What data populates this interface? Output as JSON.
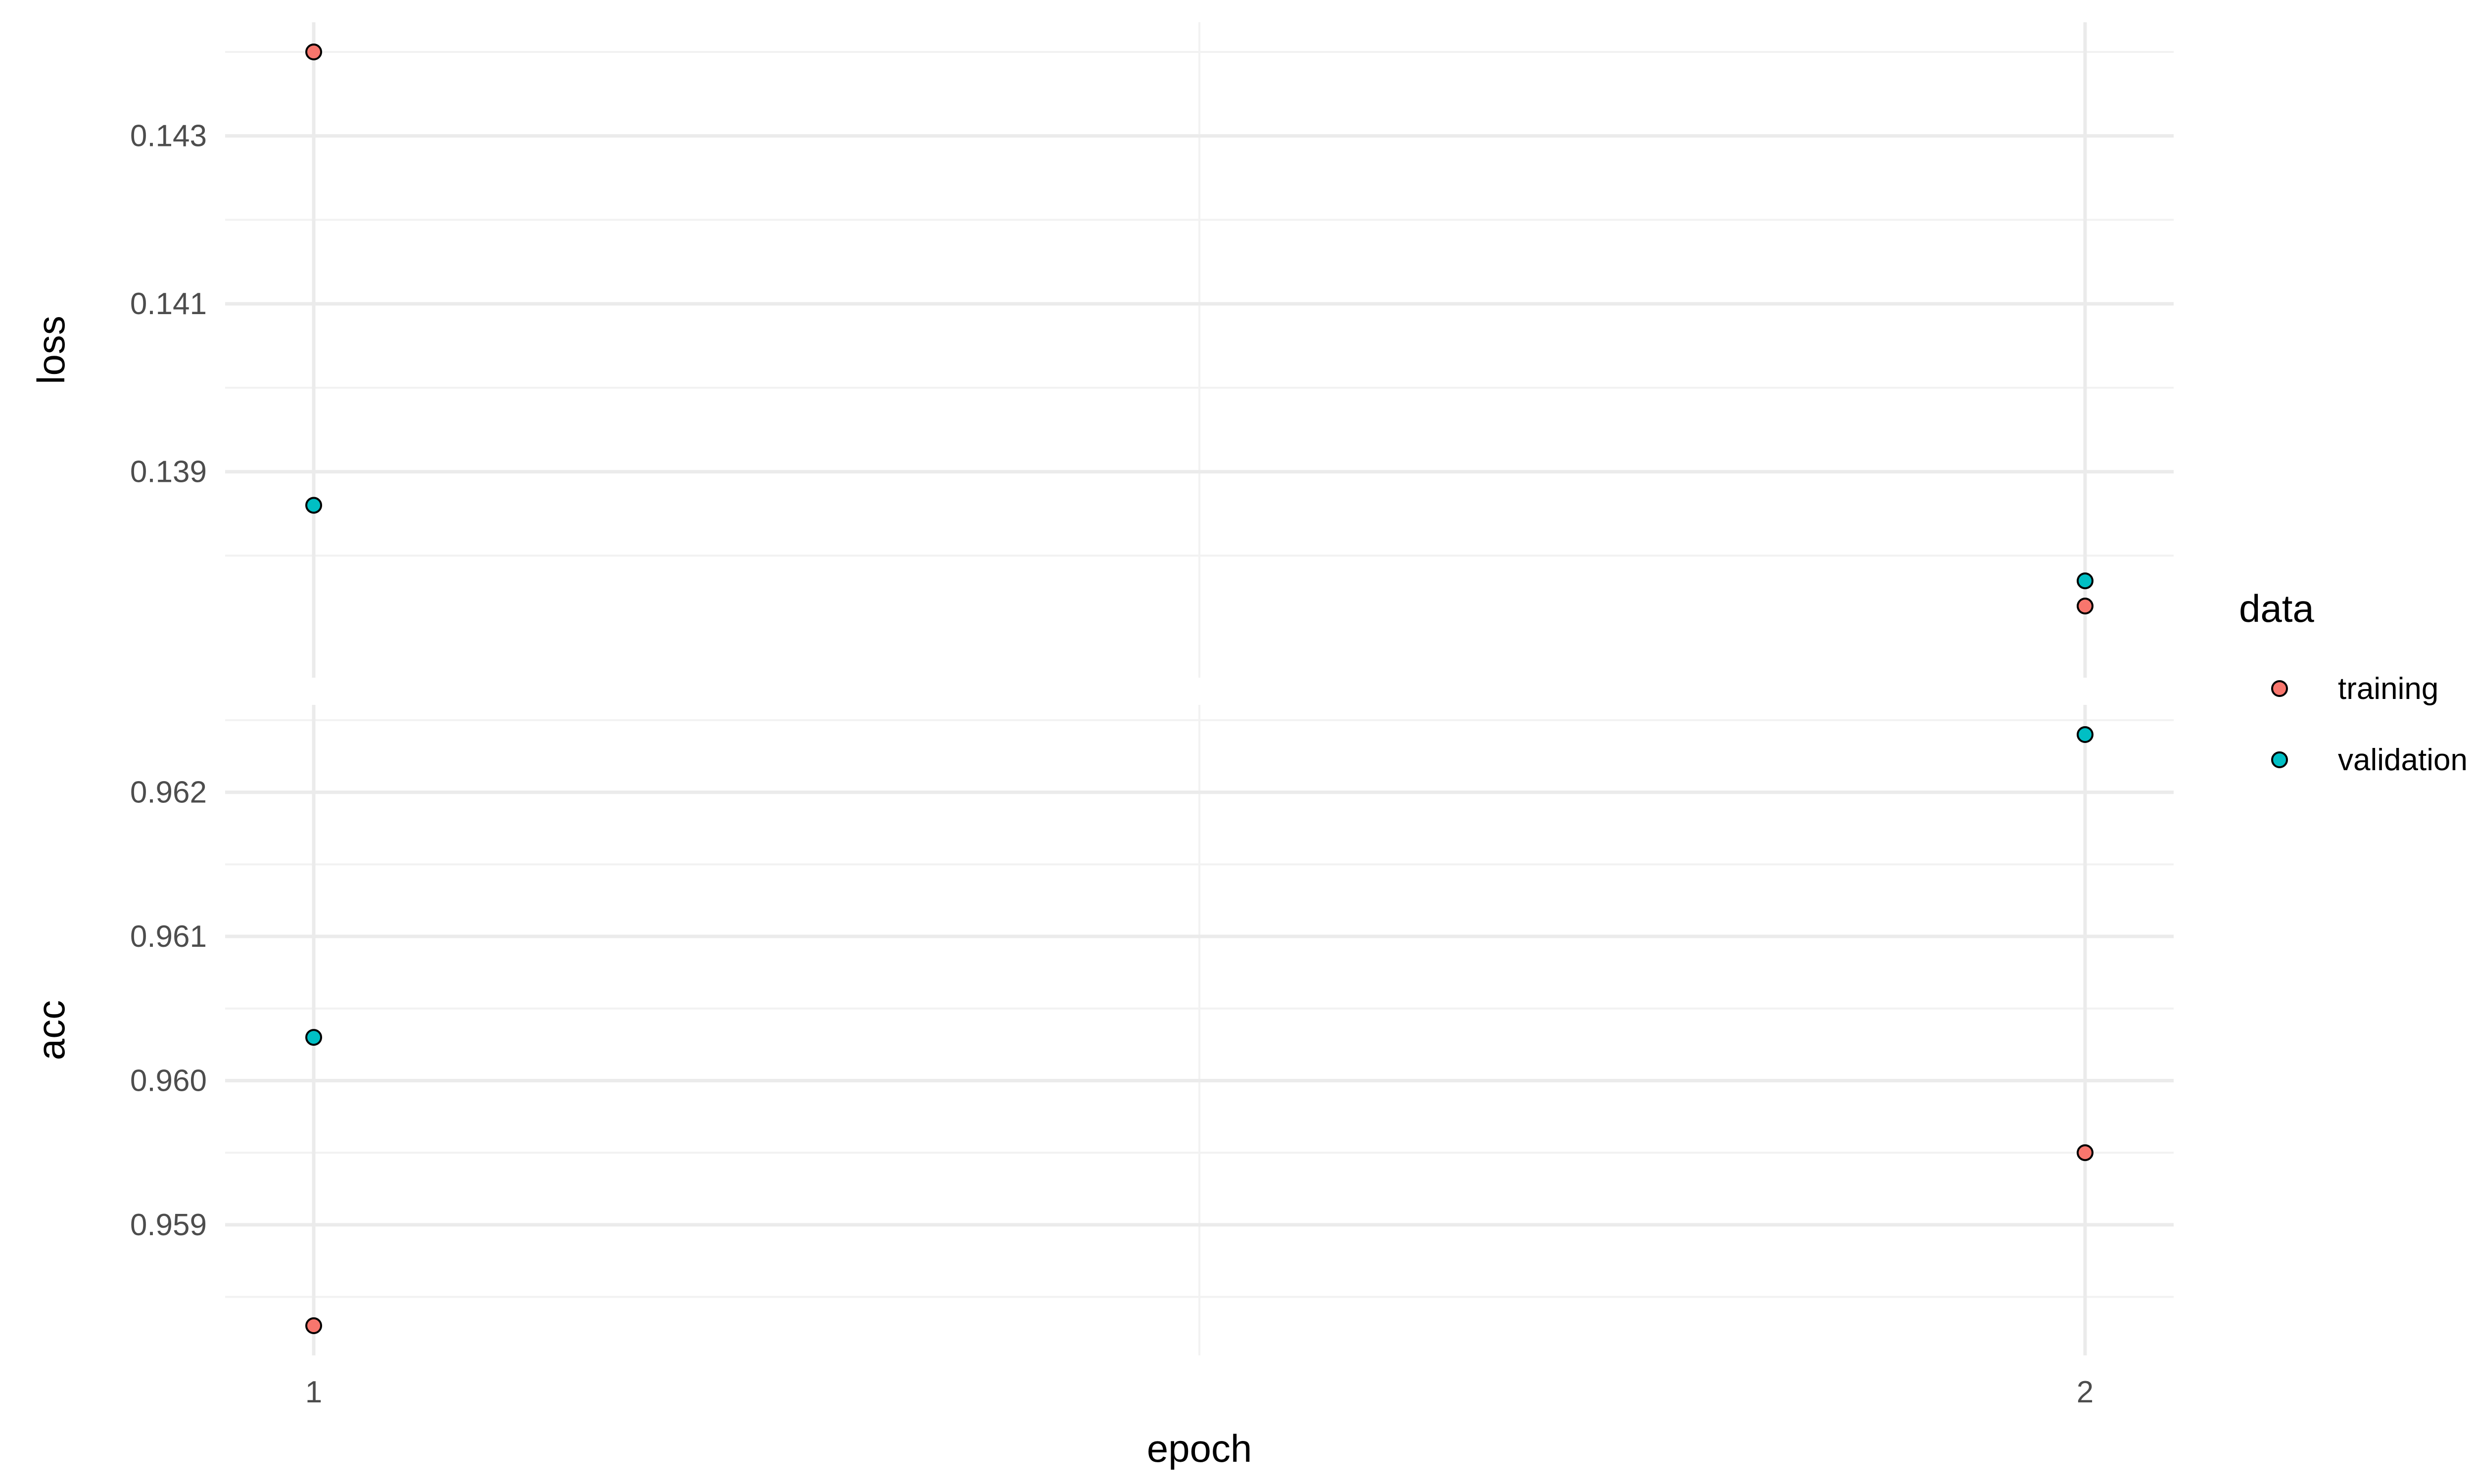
{
  "chart_data": {
    "type": "scatter",
    "x_label": "epoch",
    "x_ticks": [
      "1",
      "2"
    ],
    "x_values": [
      1,
      2
    ],
    "x_range": [
      0.95,
      2.05
    ],
    "grid": true,
    "legend": {
      "title": "data",
      "placement": "right",
      "entries": [
        "training",
        "validation"
      ]
    },
    "colors": {
      "training": "#F8766D",
      "validation": "#00BFC4",
      "point_outline": "#000000",
      "grid_major": "#EBEBEB",
      "grid_minor": "#F2F2F2"
    },
    "panels": [
      {
        "label": "loss",
        "y_ticks": [
          "0.139",
          "0.141",
          "0.143"
        ],
        "y_tick_values": [
          0.139,
          0.141,
          0.143
        ],
        "y_range": [
          0.1369,
          0.144
        ],
        "series": [
          {
            "name": "training",
            "x": [
              1,
              2
            ],
            "y": [
              0.144,
              0.1374
            ]
          },
          {
            "name": "validation",
            "x": [
              1,
              2
            ],
            "y": [
              0.1386,
              0.1377
            ]
          }
        ]
      },
      {
        "label": "acc",
        "y_ticks": [
          "0.959",
          "0.960",
          "0.961",
          "0.962"
        ],
        "y_tick_values": [
          0.959,
          0.96,
          0.961,
          0.962
        ],
        "y_range": [
          0.9583,
          0.9624
        ],
        "series": [
          {
            "name": "training",
            "x": [
              1,
              2
            ],
            "y": [
              0.9583,
              0.9595
            ]
          },
          {
            "name": "validation",
            "x": [
              1,
              2
            ],
            "y": [
              0.9603,
              0.9624
            ]
          }
        ]
      }
    ]
  }
}
